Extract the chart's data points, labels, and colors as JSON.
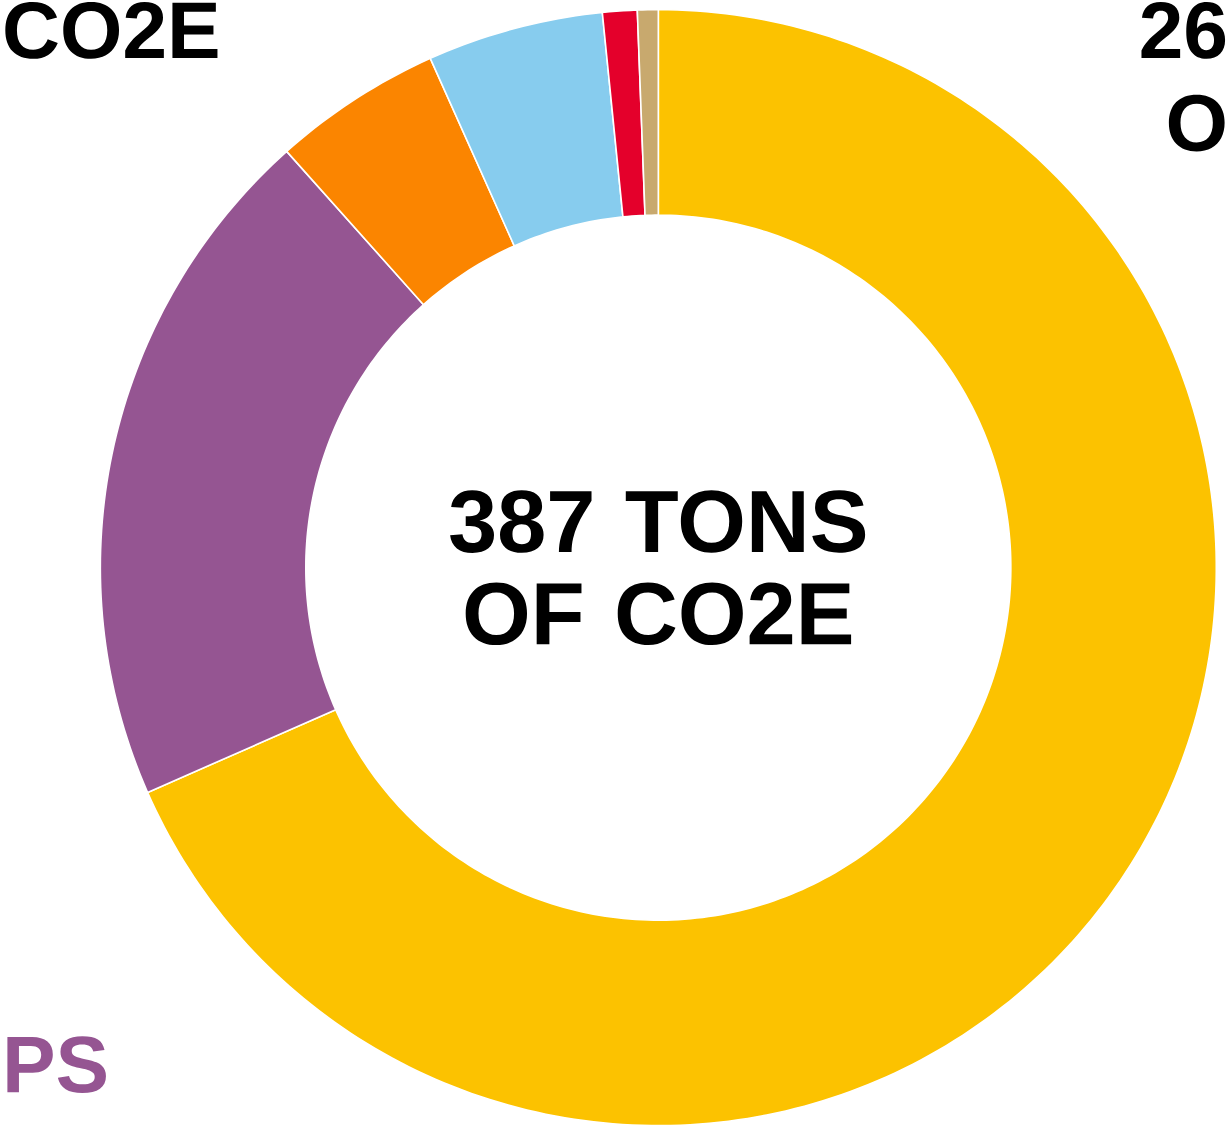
{
  "chart_data": {
    "type": "donut",
    "title": "387 TONS OF CO2E",
    "categories": [
      null,
      null,
      null,
      null,
      null,
      null
    ],
    "values": [
      68.4,
      20.0,
      4.9,
      5.1,
      1.0,
      0.6
    ],
    "colors": [
      "#fcc200",
      "#955592",
      "#fb8500",
      "#87ccee",
      "#e4002b",
      "#c8a96e"
    ],
    "annotations": [
      "CO2E",
      "26",
      "O",
      "PS"
    ]
  }
}
